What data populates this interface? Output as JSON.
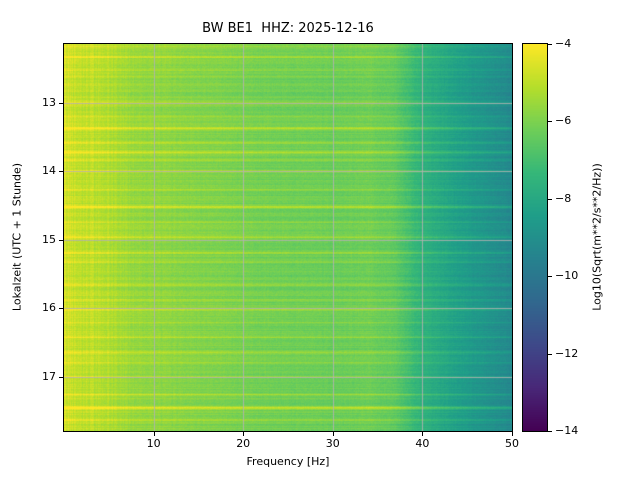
{
  "figure": {
    "title": "BW BE1  HHZ: 2025-12-16",
    "xlabel": "Frequency [Hz]",
    "ylabel": "Lokalzeit (UTC + 1 Stunde)",
    "colorbar_label": "Log10(Sqrt(m**2/s**2/Hz))"
  },
  "chart_data": {
    "type": "heatmap",
    "subtype": "spectrogram",
    "title": "BW BE1  HHZ: 2025-12-16",
    "station": "BW BE1",
    "channel": "HHZ",
    "date": "2025-12-16",
    "xlabel": "Frequency [Hz]",
    "ylabel": "Lokalzeit (UTC + 1 Stunde)",
    "x_range_hz": [
      0,
      50
    ],
    "x_ticks": [
      10,
      20,
      30,
      40,
      50
    ],
    "y_range_hours": [
      12.14,
      17.79
    ],
    "y_ticks": [
      13,
      14,
      15,
      16,
      17
    ],
    "y_axis_inverted": true,
    "grid": true,
    "colormap": "viridis",
    "color_scale_label": "Log10(Sqrt(m**2/s**2/Hz))",
    "color_range": [
      -14,
      -4
    ],
    "colorbar_ticks": [
      -4,
      -6,
      -8,
      -10,
      -12,
      -14
    ],
    "background_spectrum": {
      "freq_hz": [
        0,
        3,
        8,
        15,
        22,
        30,
        34,
        37,
        40,
        44,
        50
      ],
      "level_log10": [
        -4.7,
        -5.0,
        -5.6,
        -5.9,
        -6.15,
        -6.3,
        -6.2,
        -6.5,
        -7.6,
        -8.4,
        -9.3
      ]
    },
    "event_streaks": [
      {
        "time_hours": 12.18,
        "strength": 0.8
      },
      {
        "time_hours": 12.33,
        "strength": 0.9
      },
      {
        "time_hours": 12.52,
        "strength": 0.7
      },
      {
        "time_hours": 12.62,
        "strength": 0.5
      },
      {
        "time_hours": 13.0,
        "strength": 0.8
      },
      {
        "time_hours": 13.2,
        "strength": 0.5
      },
      {
        "time_hours": 13.37,
        "strength": 1.3
      },
      {
        "time_hours": 13.58,
        "strength": 0.8
      },
      {
        "time_hours": 13.72,
        "strength": 1.2
      },
      {
        "time_hours": 13.83,
        "strength": 0.7
      },
      {
        "time_hours": 14.0,
        "strength": 0.9
      },
      {
        "time_hours": 14.27,
        "strength": 0.7
      },
      {
        "time_hours": 14.52,
        "strength": 1.3
      },
      {
        "time_hours": 14.74,
        "strength": 0.6
      },
      {
        "time_hours": 14.96,
        "strength": 1.0
      },
      {
        "time_hours": 15.19,
        "strength": 0.7
      },
      {
        "time_hours": 15.32,
        "strength": 0.6
      },
      {
        "time_hours": 15.66,
        "strength": 0.8
      },
      {
        "time_hours": 15.88,
        "strength": 0.6
      },
      {
        "time_hours": 16.02,
        "strength": 1.1
      },
      {
        "time_hours": 16.21,
        "strength": 0.6
      },
      {
        "time_hours": 16.42,
        "strength": 0.8
      },
      {
        "time_hours": 16.64,
        "strength": 1.0
      },
      {
        "time_hours": 16.8,
        "strength": 0.6
      },
      {
        "time_hours": 17.0,
        "strength": 0.8
      },
      {
        "time_hours": 17.26,
        "strength": 0.7
      },
      {
        "time_hours": 17.45,
        "strength": 1.6
      },
      {
        "time_hours": 17.63,
        "strength": 0.7
      }
    ],
    "colors": {
      "grid": "#b2b2b2",
      "axes_frame": "#000000",
      "figure_background": "#ffffff"
    }
  }
}
